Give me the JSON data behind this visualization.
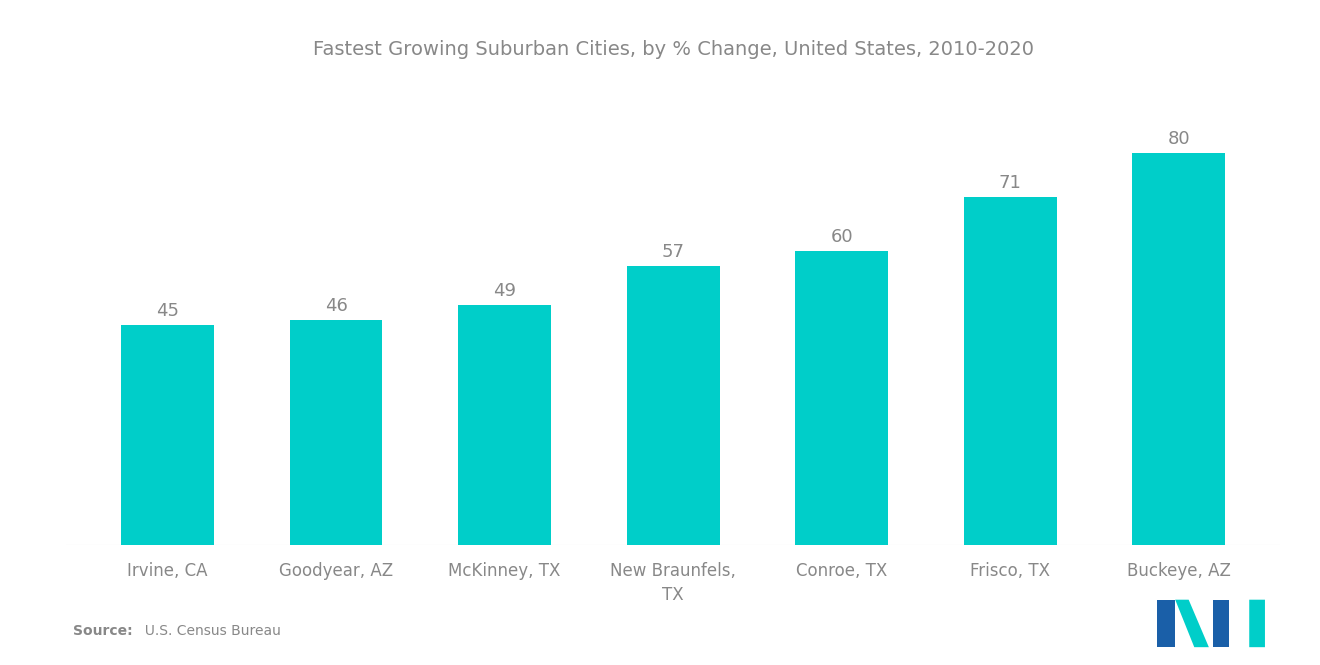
{
  "title": "Fastest Growing Suburban Cities, by % Change, United States, 2010-2020",
  "categories": [
    "Irvine, CA",
    "Goodyear, AZ",
    "McKinney, TX",
    "New Braunfels,\nTX",
    "Conroe, TX",
    "Frisco, TX",
    "Buckeye, AZ"
  ],
  "values": [
    45,
    46,
    49,
    57,
    60,
    71,
    80
  ],
  "bar_color": "#00CEC9",
  "label_color": "#888888",
  "title_color": "#888888",
  "background_color": "#ffffff",
  "source_bold": "Source:",
  "source_rest": "  U.S. Census Bureau",
  "ylim": [
    0,
    95
  ],
  "bar_label_fontsize": 13,
  "tick_label_fontsize": 12,
  "title_fontsize": 14,
  "logo_color_blue": "#1a5fa8",
  "logo_color_teal": "#00CEC9"
}
